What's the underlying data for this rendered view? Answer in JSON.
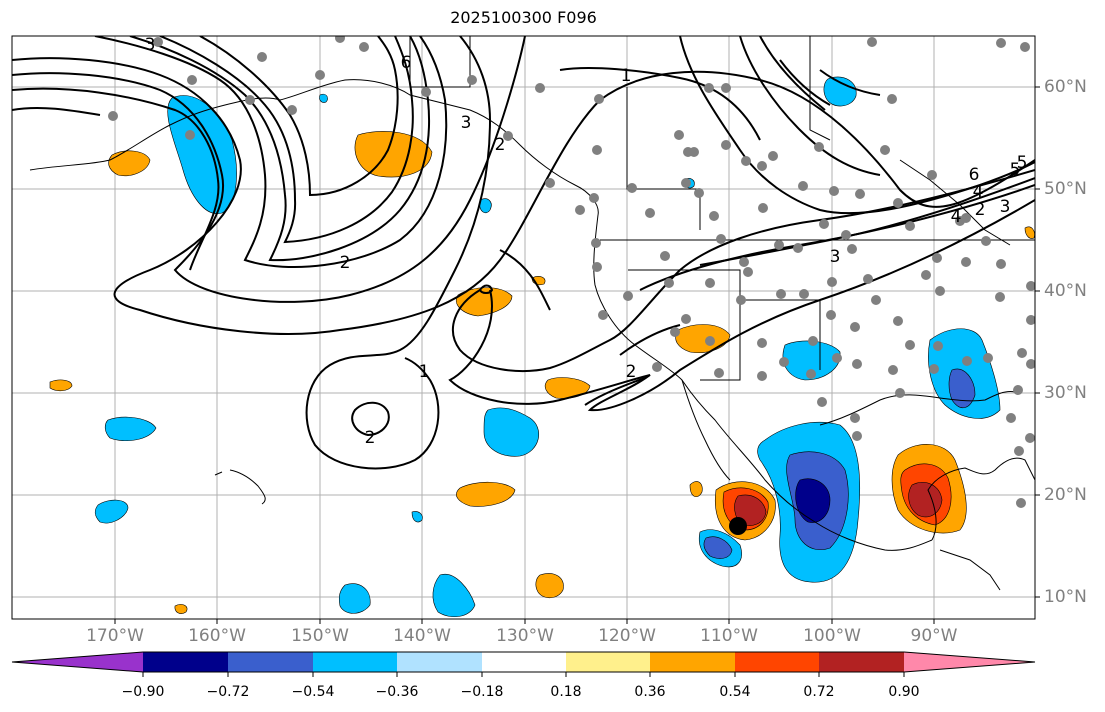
{
  "title": "2025100300 F096",
  "lon_labels": [
    "170°W",
    "160°W",
    "150°W",
    "140°W",
    "130°W",
    "120°W",
    "110°W",
    "100°W",
    "90°W"
  ],
  "lat_labels": [
    "60°N",
    "50°N",
    "40°N",
    "30°N",
    "20°N",
    "10°N"
  ],
  "colorbar": {
    "ticks": [
      "−0.90",
      "−0.72",
      "−0.54",
      "−0.36",
      "−0.18",
      "0.18",
      "0.36",
      "0.54",
      "0.72",
      "0.90"
    ],
    "colors": [
      "#9932cc",
      "#00008b",
      "#3a5fcd",
      "#00bfff",
      "#b0e2ff",
      "#ffffff",
      "#fff08c",
      "#ffa500",
      "#ff4500",
      "#b22222",
      "#ff88aa"
    ]
  },
  "contour_labels": [
    "6",
    "1",
    "2",
    "3",
    "4",
    "5",
    "6",
    "3",
    "2",
    "2",
    "1",
    "2",
    "3",
    "2",
    "4",
    "3",
    "5"
  ],
  "storm_marker": "storm-center"
}
